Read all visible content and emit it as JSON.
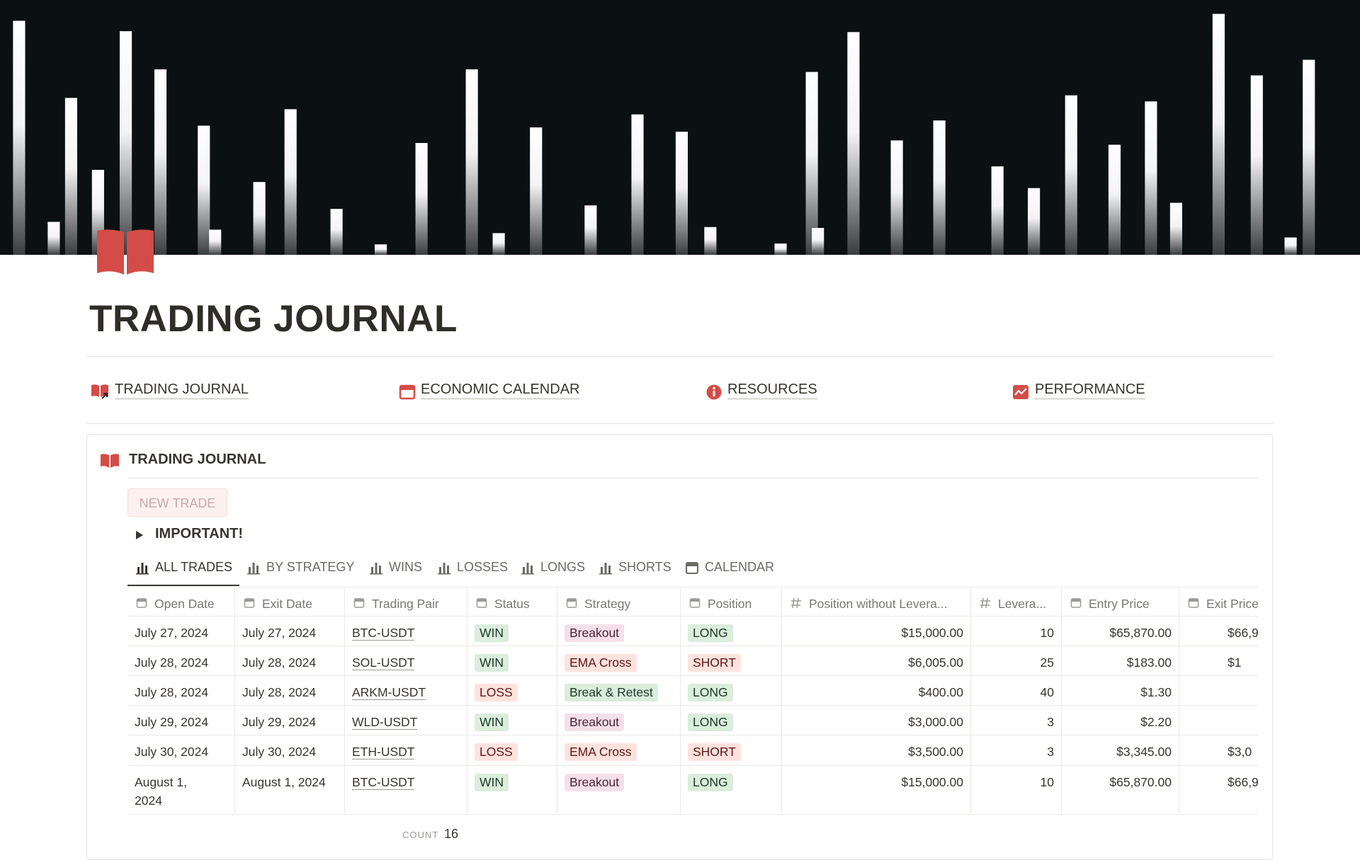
{
  "title": "TRADING JOURNAL",
  "nav": [
    "TRADING JOURNAL",
    "ECONOMIC CALENDAR",
    "RESOURCES",
    "PERFORMANCE"
  ],
  "database": {
    "title": "TRADING JOURNAL",
    "new_button": "NEW TRADE",
    "toggle": "IMPORTANT!",
    "tabs": [
      "ALL TRADES",
      "BY STRATEGY",
      "WINS",
      "LOSSES",
      "LONGS",
      "SHORTS",
      "CALENDAR"
    ],
    "columns": [
      "Open Date",
      "Exit Date",
      "Trading Pair",
      "Status",
      "Strategy",
      "Position",
      "Position without Levera...",
      "Levera...",
      "Entry Price",
      "Exit Price"
    ],
    "rows": [
      [
        "July 27, 2024",
        "July 27, 2024",
        "BTC-USDT",
        {
          "text": "WIN",
          "color": "green"
        },
        {
          "text": "Breakout",
          "color": "pink"
        },
        {
          "text": "LONG",
          "color": "green"
        },
        "$15,000.00",
        "10",
        "$65,870.00",
        "$66,9"
      ],
      [
        "July 28, 2024",
        "July 28, 2024",
        "SOL-USDT",
        {
          "text": "WIN",
          "color": "green"
        },
        {
          "text": "EMA Cross",
          "color": "red"
        },
        {
          "text": "SHORT",
          "color": "red"
        },
        "$6,005.00",
        "25",
        "$183.00",
        "$1"
      ],
      [
        "July 28, 2024",
        "July 28, 2024",
        "ARKM-USDT",
        {
          "text": "LOSS",
          "color": "red"
        },
        {
          "text": "Break & Retest",
          "color": "green"
        },
        {
          "text": "LONG",
          "color": "green"
        },
        "$400.00",
        "40",
        "$1.30",
        null
      ],
      [
        "July 29, 2024",
        "July 29, 2024",
        "WLD-USDT",
        {
          "text": "WIN",
          "color": "green"
        },
        {
          "text": "Breakout",
          "color": "pink"
        },
        {
          "text": "LONG",
          "color": "green"
        },
        "$3,000.00",
        "3",
        "$2.20",
        null
      ],
      [
        "July 30, 2024",
        "July 30, 2024",
        "ETH-USDT",
        {
          "text": "LOSS",
          "color": "red"
        },
        {
          "text": "EMA Cross",
          "color": "red"
        },
        {
          "text": "SHORT",
          "color": "red"
        },
        "$3,500.00",
        "3",
        "$3,345.00",
        "$3,0"
      ],
      [
        "August 1, 2024",
        "August 1, 2024",
        "BTC-USDT",
        {
          "text": "WIN",
          "color": "green"
        },
        {
          "text": "Breakout",
          "color": "pink"
        },
        {
          "text": "LONG",
          "color": "green"
        },
        "$15,000.00",
        "10",
        "$65,870.00",
        "$66,9"
      ]
    ],
    "count_label": "COUNT",
    "count": 16
  }
}
